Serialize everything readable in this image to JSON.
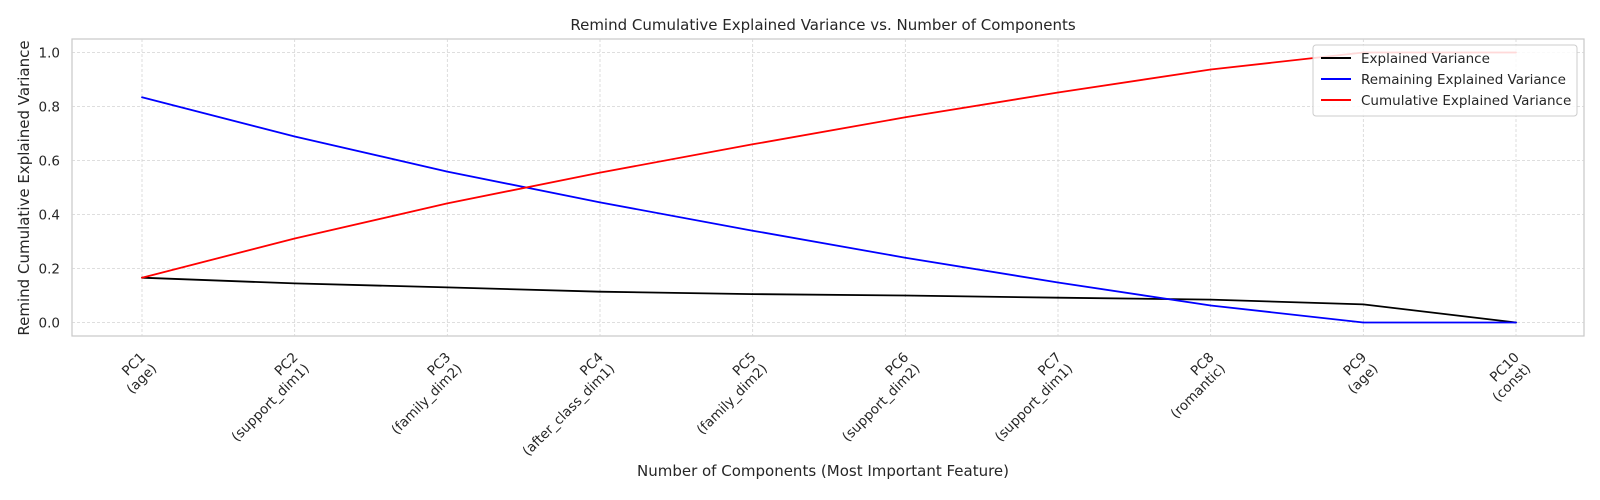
{
  "chart_data": {
    "type": "line",
    "title": "Remind Cumulative Explained Variance vs. Number of Components",
    "xlabel": "Number of Components (Most Important Feature)",
    "ylabel": "Remind Cumulative Explained Variance",
    "categories": [
      [
        "PC1",
        "(age)"
      ],
      [
        "PC2",
        "(support_dim1)"
      ],
      [
        "PC3",
        "(family_dim2)"
      ],
      [
        "PC4",
        "(after_class_dim1)"
      ],
      [
        "PC5",
        "(family_dim2)"
      ],
      [
        "PC6",
        "(support_dim2)"
      ],
      [
        "PC7",
        "(support_dim1)"
      ],
      [
        "PC8",
        "(romantic)"
      ],
      [
        "PC9",
        "(age)"
      ],
      [
        "PC10",
        "(const)"
      ]
    ],
    "ylim": [
      -0.05,
      1.05
    ],
    "yticks": [
      "0.0",
      "0.2",
      "0.4",
      "0.6",
      "0.8",
      "1.0"
    ],
    "grid": true,
    "legend_position": "top-right",
    "series": [
      {
        "name": "Explained Variance",
        "color": "#000000",
        "values": [
          0.166,
          0.145,
          0.13,
          0.114,
          0.105,
          0.1,
          0.092,
          0.085,
          0.067,
          0.0
        ]
      },
      {
        "name": "Remaining Explained Variance",
        "color": "#0000ff",
        "values": [
          0.834,
          0.689,
          0.559,
          0.445,
          0.34,
          0.24,
          0.148,
          0.063,
          0.0,
          0.0
        ]
      },
      {
        "name": "Cumulative Explained Variance",
        "color": "#ff0000",
        "values": [
          0.166,
          0.311,
          0.441,
          0.555,
          0.66,
          0.76,
          0.852,
          0.937,
          1.0,
          1.0
        ]
      }
    ]
  }
}
